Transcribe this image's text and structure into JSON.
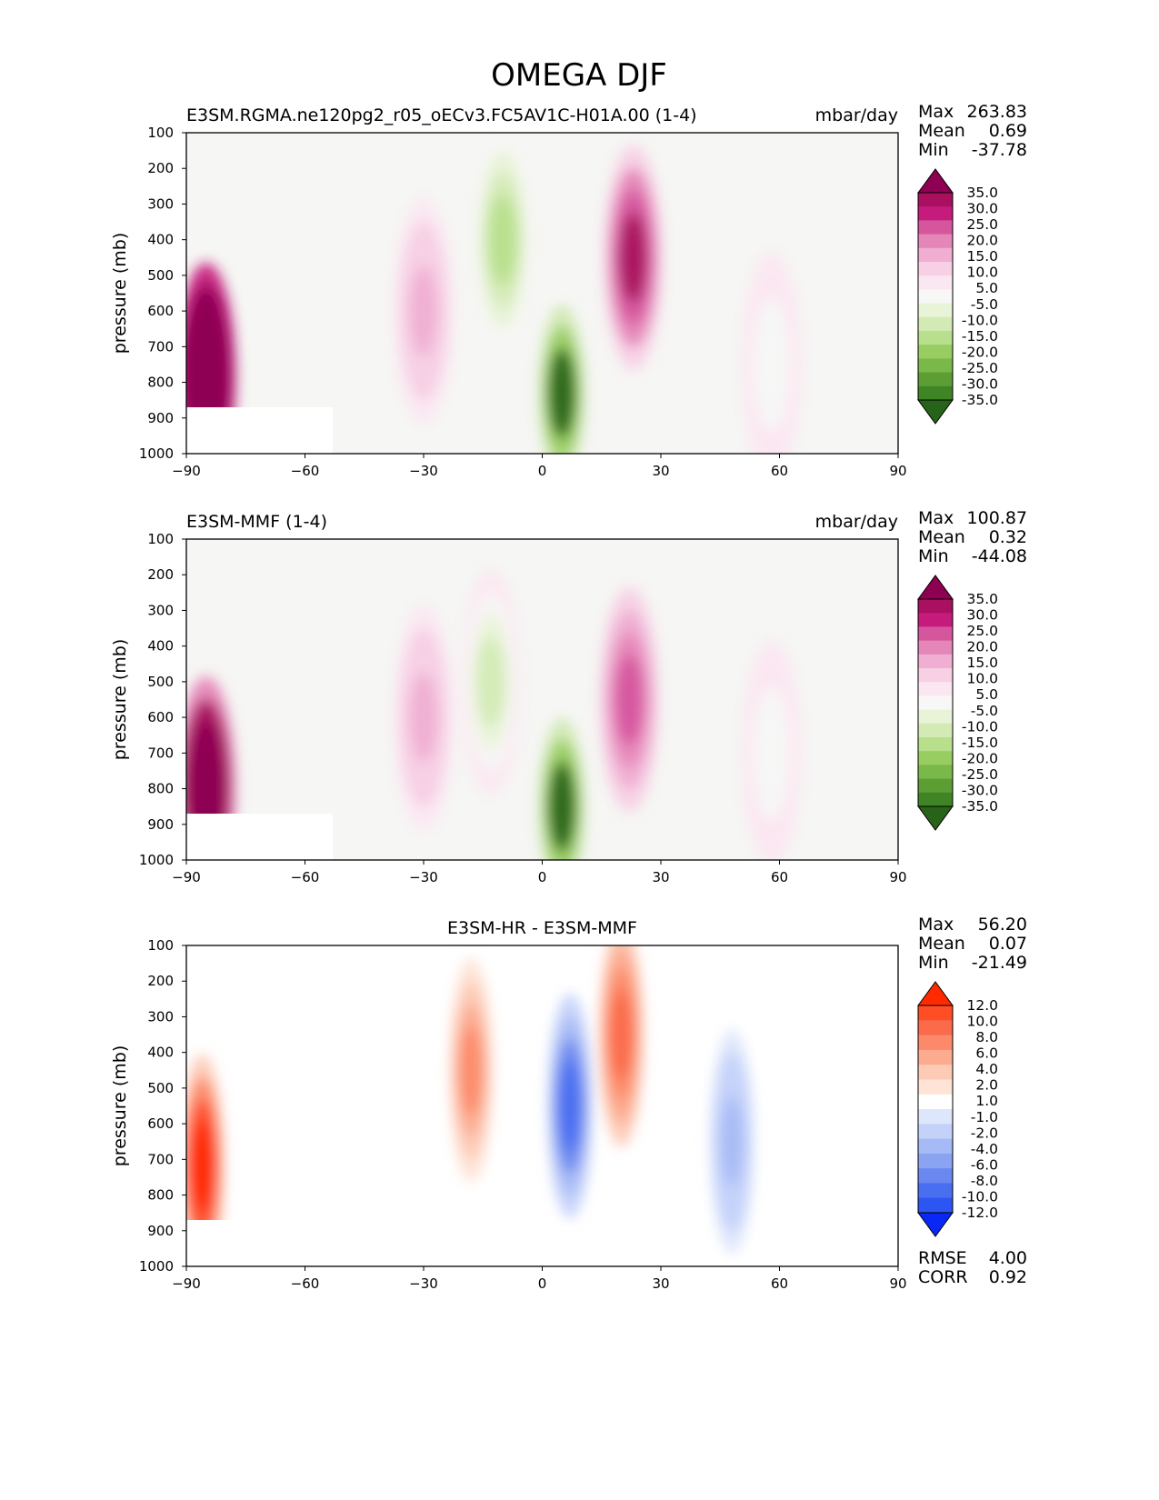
{
  "figure_title": "OMEGA DJF",
  "chart_data": [
    {
      "type": "heatmap",
      "title": "E3SM.RGMA.ne120pg2_r05_oECv3.FC5AV1C-H01A.00 (1-4)",
      "units": "mbar/day",
      "xlabel": "",
      "ylabel": "pressure (mb)",
      "xlim": [
        -90,
        90
      ],
      "ylim": [
        1000,
        100
      ],
      "xticks": [
        "−90",
        "−60",
        "−30",
        "0",
        "30",
        "60",
        "90"
      ],
      "yticks": [
        "100",
        "200",
        "300",
        "400",
        "500",
        "600",
        "700",
        "800",
        "900",
        "1000"
      ],
      "stats": [
        {
          "label": "Max",
          "value": "263.83"
        },
        {
          "label": "Mean",
          "value": "0.69"
        },
        {
          "label": "Min",
          "value": "-37.78"
        }
      ],
      "colorbar": {
        "labels": [
          "35.0",
          "30.0",
          "25.0",
          "20.0",
          "15.0",
          "10.0",
          "5.0",
          "-5.0",
          "-10.0",
          "-15.0",
          "-20.0",
          "-25.0",
          "-30.0",
          "-35.0"
        ],
        "colors": [
          "#8e0152",
          "#a9105f",
          "#c51b7d",
          "#d6569e",
          "#e586b8",
          "#efaed2",
          "#f7d0e5",
          "#fbe7f1",
          "#f7f7f5",
          "#e8f3d7",
          "#d3eab5",
          "#b8df8c",
          "#98cd61",
          "#7ab84a",
          "#5c9e34",
          "#3f8526",
          "#276419"
        ]
      },
      "features": [
        {
          "name": "SH polar subsidence",
          "lat": -85,
          "p": 780,
          "value": 100
        },
        {
          "name": "SH subtropical subsidence",
          "lat": -30,
          "p": 600,
          "value": 12
        },
        {
          "name": "SH tropical ascent",
          "lat": -10,
          "p": 400,
          "value": -22
        },
        {
          "name": "ITCZ ascent",
          "lat": 5,
          "p": 830,
          "value": -38
        },
        {
          "name": "NH subtropical subsidence",
          "lat": 23,
          "p": 450,
          "value": 31
        },
        {
          "name": "NH midlatitude ascent",
          "lat": 58,
          "p": 750,
          "value": -10
        }
      ]
    },
    {
      "type": "heatmap",
      "title": "E3SM-MMF (1-4)",
      "units": "mbar/day",
      "xlabel": "",
      "ylabel": "pressure (mb)",
      "xlim": [
        -90,
        90
      ],
      "ylim": [
        1000,
        100
      ],
      "xticks": [
        "−90",
        "−60",
        "−30",
        "0",
        "30",
        "60",
        "90"
      ],
      "yticks": [
        "100",
        "200",
        "300",
        "400",
        "500",
        "600",
        "700",
        "800",
        "900",
        "1000"
      ],
      "stats": [
        {
          "label": "Max",
          "value": "100.87"
        },
        {
          "label": "Mean",
          "value": "0.32"
        },
        {
          "label": "Min",
          "value": "-44.08"
        }
      ],
      "colorbar": {
        "labels": [
          "35.0",
          "30.0",
          "25.0",
          "20.0",
          "15.0",
          "10.0",
          "5.0",
          "-5.0",
          "-10.0",
          "-15.0",
          "-20.0",
          "-25.0",
          "-30.0",
          "-35.0"
        ],
        "colors": [
          "#8e0152",
          "#a9105f",
          "#c51b7d",
          "#d6569e",
          "#e586b8",
          "#efaed2",
          "#f7d0e5",
          "#fbe7f1",
          "#f7f7f5",
          "#e8f3d7",
          "#d3eab5",
          "#b8df8c",
          "#98cd61",
          "#7ab84a",
          "#5c9e34",
          "#3f8526",
          "#276419"
        ]
      },
      "features": [
        {
          "name": "SH polar subsidence",
          "lat": -85,
          "p": 800,
          "value": 60
        },
        {
          "name": "SH subtropical subsidence",
          "lat": -30,
          "p": 600,
          "value": 10
        },
        {
          "name": "SH tropical ascent",
          "lat": -13,
          "p": 500,
          "value": -20
        },
        {
          "name": "ITCZ ascent",
          "lat": 5,
          "p": 850,
          "value": -40
        },
        {
          "name": "NH subtropical subsidence",
          "lat": 22,
          "p": 550,
          "value": 20
        },
        {
          "name": "NH midlatitude ascent",
          "lat": 58,
          "p": 700,
          "value": -8
        }
      ]
    },
    {
      "type": "heatmap",
      "title": "E3SM-HR - E3SM-MMF",
      "units": "",
      "xlabel": "",
      "ylabel": "pressure (mb)",
      "xlim": [
        -90,
        90
      ],
      "ylim": [
        1000,
        100
      ],
      "xticks": [
        "−90",
        "−60",
        "−30",
        "0",
        "30",
        "60",
        "90"
      ],
      "yticks": [
        "100",
        "200",
        "300",
        "400",
        "500",
        "600",
        "700",
        "800",
        "900",
        "1000"
      ],
      "stats": [
        {
          "label": "Max",
          "value": "56.20"
        },
        {
          "label": "Mean",
          "value": "0.07"
        },
        {
          "label": "Min",
          "value": "-21.49"
        }
      ],
      "extra_stats": [
        {
          "label": "RMSE",
          "value": "4.00"
        },
        {
          "label": "CORR",
          "value": "0.92"
        }
      ],
      "colorbar": {
        "labels": [
          "12.0",
          "10.0",
          "8.0",
          "6.0",
          "4.0",
          "2.0",
          "1.0",
          "-1.0",
          "-2.0",
          "-4.0",
          "-6.0",
          "-8.0",
          "-10.0",
          "-12.0"
        ],
        "colors": [
          "#ff2a00",
          "#ff4d26",
          "#fb6a4a",
          "#fc8a6a",
          "#fcab8f",
          "#fdcab5",
          "#fee3d6",
          "#ffffff",
          "#dde6fb",
          "#c4d2fa",
          "#a6bbf6",
          "#8aa4f2",
          "#6a88ef",
          "#4a6ef0",
          "#2c55f2",
          "#0a28f5"
        ]
      },
      "features": [
        {
          "name": "SH polar difference",
          "lat": -86,
          "p": 720,
          "value": 14
        },
        {
          "name": "SH tropics positive",
          "lat": -18,
          "p": 450,
          "value": 7
        },
        {
          "name": "equatorial negative",
          "lat": 7,
          "p": 550,
          "value": -12
        },
        {
          "name": "NH subtropics positive",
          "lat": 20,
          "p": 350,
          "value": 8
        },
        {
          "name": "NH midlatitude negative",
          "lat": 48,
          "p": 650,
          "value": -5
        }
      ]
    }
  ]
}
